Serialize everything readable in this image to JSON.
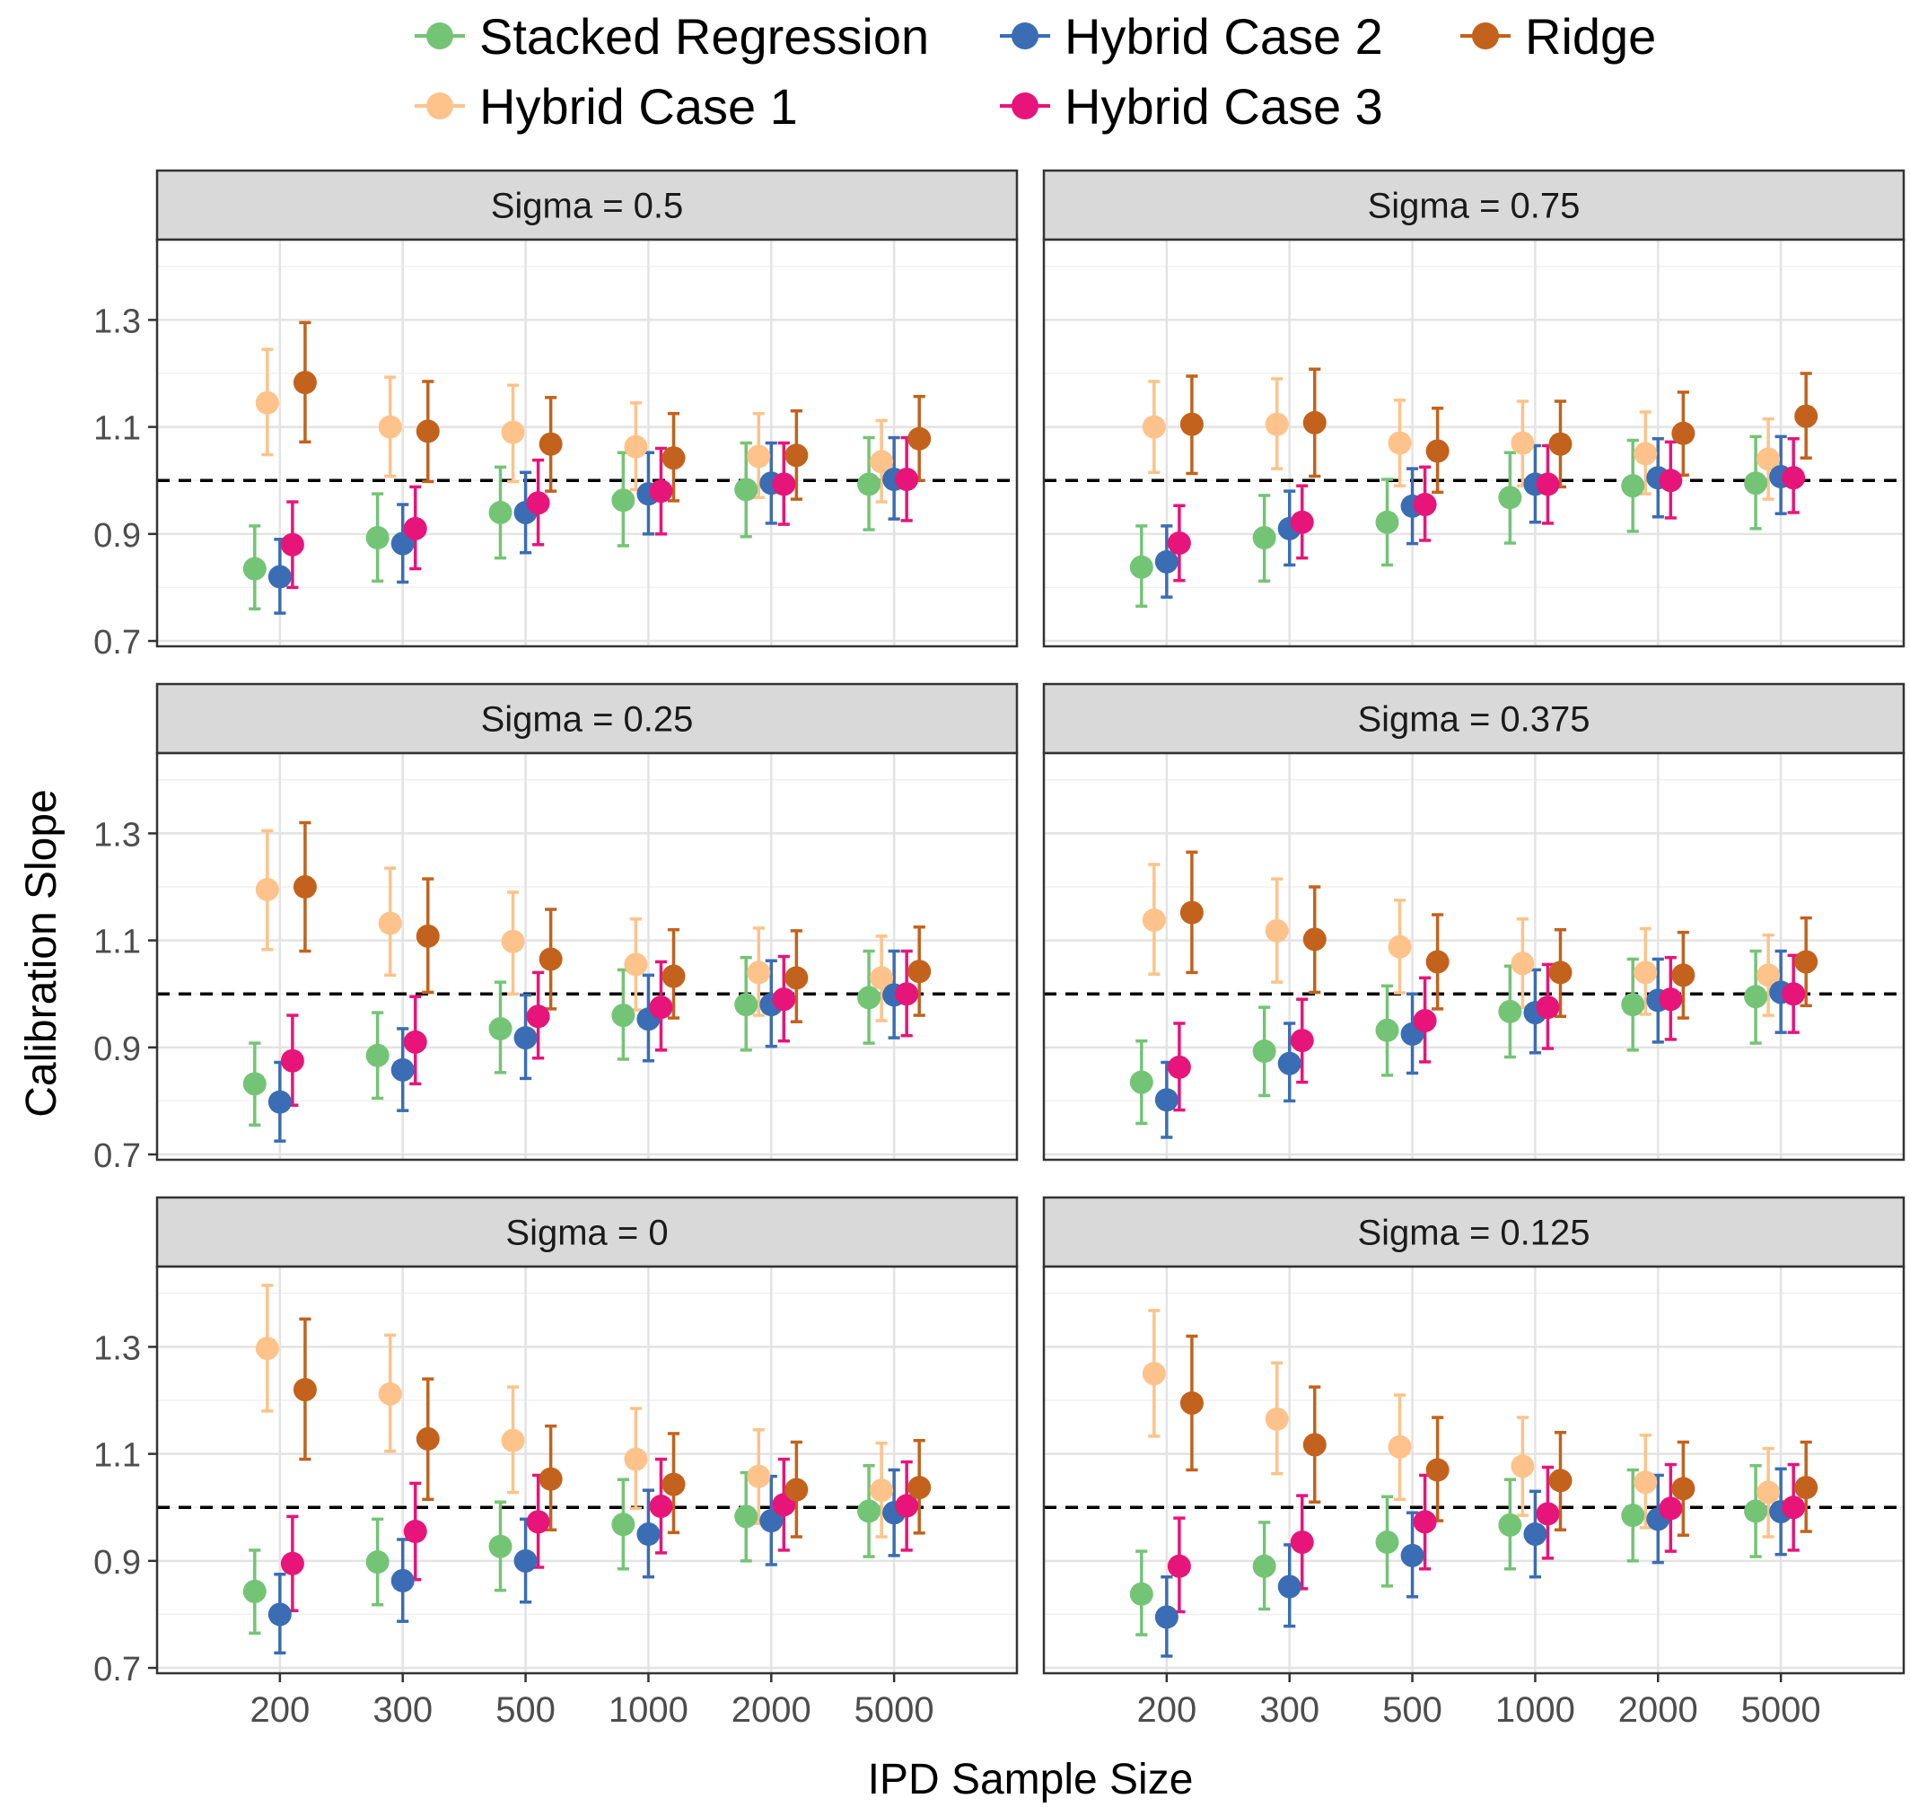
{
  "legend": {
    "items": [
      {
        "name": "Stacked Regression",
        "color": "#74c476"
      },
      {
        "name": "Hybrid Case 2",
        "color": "#3a6db3"
      },
      {
        "name": "Ridge",
        "color": "#c2621c"
      },
      {
        "name": "Hybrid Case 1",
        "color": "#fdc38a"
      },
      {
        "name": "Hybrid Case 3",
        "color": "#e7157a"
      }
    ]
  },
  "chart_data": {
    "type": "scatter",
    "subtype": "point-range-faceted",
    "xlabel": "IPD Sample Size",
    "ylabel": "Calibration Slope",
    "categories": [
      "200",
      "300",
      "500",
      "1000",
      "2000",
      "5000"
    ],
    "ylim": [
      0.69,
      1.45
    ],
    "yticks": [
      "0.7",
      "0.9",
      "1.1",
      "1.3"
    ],
    "reference_line": 1.0,
    "series_order": [
      "Stacked Regression",
      "Hybrid Case 2",
      "Hybrid Case 3",
      "Hybrid Case 1",
      "Ridge"
    ],
    "colors": {
      "Stacked Regression": "#74c476",
      "Hybrid Case 2": "#3a6db3",
      "Hybrid Case 3": "#e7157a",
      "Hybrid Case 1": "#fdc38a",
      "Ridge": "#c2621c"
    },
    "facets": [
      {
        "title": "Sigma = 0.5",
        "series": {
          "Stacked Regression": [
            [
              0.835,
              0.76,
              0.915
            ],
            [
              0.893,
              0.812,
              0.975
            ],
            [
              0.94,
              0.855,
              1.025
            ],
            [
              0.963,
              0.878,
              1.052
            ],
            [
              0.983,
              0.895,
              1.07
            ],
            [
              0.993,
              0.908,
              1.08
            ]
          ],
          "Hybrid Case 2": [
            [
              0.82,
              0.752,
              0.89
            ],
            [
              0.882,
              0.81,
              0.955
            ],
            [
              0.94,
              0.865,
              1.015
            ],
            [
              0.975,
              0.9,
              1.052
            ],
            [
              0.995,
              0.92,
              1.07
            ],
            [
              1.002,
              0.928,
              1.08
            ]
          ],
          "Hybrid Case 3": [
            [
              0.88,
              0.8,
              0.96
            ],
            [
              0.91,
              0.835,
              0.988
            ],
            [
              0.958,
              0.88,
              1.038
            ],
            [
              0.98,
              0.9,
              1.06
            ],
            [
              0.993,
              0.918,
              1.07
            ],
            [
              1.002,
              0.925,
              1.08
            ]
          ],
          "Hybrid Case 1": [
            [
              1.145,
              1.048,
              1.245
            ],
            [
              1.1,
              1.008,
              1.193
            ],
            [
              1.09,
              0.998,
              1.178
            ],
            [
              1.063,
              0.983,
              1.145
            ],
            [
              1.045,
              0.968,
              1.125
            ],
            [
              1.035,
              0.96,
              1.112
            ]
          ],
          "Ridge": [
            [
              1.183,
              1.072,
              1.295
            ],
            [
              1.092,
              0.998,
              1.185
            ],
            [
              1.068,
              0.98,
              1.155
            ],
            [
              1.042,
              0.962,
              1.125
            ],
            [
              1.047,
              0.965,
              1.13
            ],
            [
              1.078,
              1.0,
              1.157
            ]
          ]
        }
      },
      {
        "title": "Sigma = 0.75",
        "series": {
          "Stacked Regression": [
            [
              0.838,
              0.765,
              0.915
            ],
            [
              0.893,
              0.812,
              0.972
            ],
            [
              0.922,
              0.842,
              1.002
            ],
            [
              0.968,
              0.883,
              1.052
            ],
            [
              0.99,
              0.905,
              1.075
            ],
            [
              0.995,
              0.91,
              1.082
            ]
          ],
          "Hybrid Case 2": [
            [
              0.848,
              0.782,
              0.915
            ],
            [
              0.91,
              0.842,
              0.98
            ],
            [
              0.952,
              0.882,
              1.022
            ],
            [
              0.993,
              0.922,
              1.065
            ],
            [
              1.005,
              0.932,
              1.078
            ],
            [
              1.007,
              0.938,
              1.082
            ]
          ],
          "Hybrid Case 3": [
            [
              0.883,
              0.813,
              0.953
            ],
            [
              0.922,
              0.855,
              0.99
            ],
            [
              0.955,
              0.888,
              1.025
            ],
            [
              0.993,
              0.92,
              1.065
            ],
            [
              1.0,
              0.93,
              1.072
            ],
            [
              1.005,
              0.94,
              1.078
            ]
          ],
          "Hybrid Case 1": [
            [
              1.1,
              1.015,
              1.185
            ],
            [
              1.105,
              1.022,
              1.19
            ],
            [
              1.07,
              0.99,
              1.15
            ],
            [
              1.07,
              0.99,
              1.148
            ],
            [
              1.05,
              0.975,
              1.128
            ],
            [
              1.04,
              0.965,
              1.115
            ]
          ],
          "Ridge": [
            [
              1.105,
              1.013,
              1.195
            ],
            [
              1.108,
              1.008,
              1.208
            ],
            [
              1.055,
              0.978,
              1.135
            ],
            [
              1.068,
              0.988,
              1.148
            ],
            [
              1.088,
              1.01,
              1.165
            ],
            [
              1.12,
              1.042,
              1.2
            ]
          ]
        }
      },
      {
        "title": "Sigma = 0.25",
        "series": {
          "Stacked Regression": [
            [
              0.832,
              0.755,
              0.908
            ],
            [
              0.885,
              0.805,
              0.965
            ],
            [
              0.935,
              0.853,
              1.022
            ],
            [
              0.96,
              0.878,
              1.045
            ],
            [
              0.98,
              0.895,
              1.068
            ],
            [
              0.993,
              0.908,
              1.08
            ]
          ],
          "Hybrid Case 2": [
            [
              0.798,
              0.725,
              0.872
            ],
            [
              0.858,
              0.782,
              0.935
            ],
            [
              0.918,
              0.842,
              0.998
            ],
            [
              0.953,
              0.875,
              1.035
            ],
            [
              0.98,
              0.902,
              1.062
            ],
            [
              0.998,
              0.918,
              1.08
            ]
          ],
          "Hybrid Case 3": [
            [
              0.875,
              0.792,
              0.96
            ],
            [
              0.91,
              0.832,
              0.995
            ],
            [
              0.958,
              0.88,
              1.04
            ],
            [
              0.975,
              0.895,
              1.06
            ],
            [
              0.99,
              0.912,
              1.07
            ],
            [
              1.0,
              0.922,
              1.08
            ]
          ],
          "Hybrid Case 1": [
            [
              1.195,
              1.083,
              1.305
            ],
            [
              1.132,
              1.035,
              1.235
            ],
            [
              1.098,
              1.0,
              1.19
            ],
            [
              1.055,
              0.97,
              1.14
            ],
            [
              1.04,
              0.96,
              1.123
            ],
            [
              1.03,
              0.95,
              1.108
            ]
          ],
          "Ridge": [
            [
              1.2,
              1.08,
              1.32
            ],
            [
              1.108,
              1.003,
              1.215
            ],
            [
              1.065,
              0.972,
              1.158
            ],
            [
              1.033,
              0.955,
              1.12
            ],
            [
              1.03,
              0.948,
              1.118
            ],
            [
              1.042,
              0.96,
              1.125
            ]
          ]
        }
      },
      {
        "title": "Sigma = 0.375",
        "series": {
          "Stacked Regression": [
            [
              0.835,
              0.758,
              0.912
            ],
            [
              0.893,
              0.81,
              0.975
            ],
            [
              0.932,
              0.848,
              1.015
            ],
            [
              0.967,
              0.882,
              1.052
            ],
            [
              0.98,
              0.895,
              1.065
            ],
            [
              0.995,
              0.908,
              1.08
            ]
          ],
          "Hybrid Case 2": [
            [
              0.802,
              0.732,
              0.872
            ],
            [
              0.87,
              0.8,
              0.945
            ],
            [
              0.925,
              0.852,
              1.0
            ],
            [
              0.965,
              0.89,
              1.045
            ],
            [
              0.988,
              0.91,
              1.065
            ],
            [
              1.003,
              0.928,
              1.08
            ]
          ],
          "Hybrid Case 3": [
            [
              0.863,
              0.783,
              0.945
            ],
            [
              0.913,
              0.835,
              0.99
            ],
            [
              0.95,
              0.873,
              1.03
            ],
            [
              0.975,
              0.898,
              1.055
            ],
            [
              0.99,
              0.915,
              1.068
            ],
            [
              1.0,
              0.928,
              1.072
            ]
          ],
          "Hybrid Case 1": [
            [
              1.138,
              1.037,
              1.242
            ],
            [
              1.118,
              1.022,
              1.215
            ],
            [
              1.088,
              1.002,
              1.175
            ],
            [
              1.057,
              0.975,
              1.14
            ],
            [
              1.04,
              0.962,
              1.122
            ],
            [
              1.035,
              0.96,
              1.11
            ]
          ],
          "Ridge": [
            [
              1.152,
              1.04,
              1.265
            ],
            [
              1.102,
              1.003,
              1.2
            ],
            [
              1.06,
              0.972,
              1.148
            ],
            [
              1.04,
              0.958,
              1.12
            ],
            [
              1.035,
              0.955,
              1.115
            ],
            [
              1.06,
              0.978,
              1.142
            ]
          ]
        }
      },
      {
        "title": "Sigma = 0",
        "series": {
          "Stacked Regression": [
            [
              0.843,
              0.765,
              0.92
            ],
            [
              0.898,
              0.818,
              0.978
            ],
            [
              0.927,
              0.845,
              1.01
            ],
            [
              0.968,
              0.885,
              1.052
            ],
            [
              0.983,
              0.9,
              1.065
            ],
            [
              0.993,
              0.908,
              1.078
            ]
          ],
          "Hybrid Case 2": [
            [
              0.8,
              0.728,
              0.875
            ],
            [
              0.863,
              0.787,
              0.94
            ],
            [
              0.9,
              0.823,
              0.978
            ],
            [
              0.95,
              0.87,
              1.032
            ],
            [
              0.975,
              0.893,
              1.058
            ],
            [
              0.99,
              0.91,
              1.07
            ]
          ],
          "Hybrid Case 3": [
            [
              0.895,
              0.807,
              0.983
            ],
            [
              0.955,
              0.865,
              1.045
            ],
            [
              0.973,
              0.888,
              1.06
            ],
            [
              1.002,
              0.915,
              1.09
            ],
            [
              1.005,
              0.92,
              1.09
            ],
            [
              1.003,
              0.92,
              1.085
            ]
          ],
          "Hybrid Case 1": [
            [
              1.297,
              1.18,
              1.415
            ],
            [
              1.212,
              1.105,
              1.322
            ],
            [
              1.125,
              1.028,
              1.225
            ],
            [
              1.09,
              0.998,
              1.185
            ],
            [
              1.058,
              0.97,
              1.145
            ],
            [
              1.032,
              0.945,
              1.12
            ]
          ],
          "Ridge": [
            [
              1.22,
              1.09,
              1.352
            ],
            [
              1.128,
              1.015,
              1.24
            ],
            [
              1.053,
              0.958,
              1.152
            ],
            [
              1.043,
              0.953,
              1.138
            ],
            [
              1.033,
              0.945,
              1.122
            ],
            [
              1.037,
              0.952,
              1.125
            ]
          ]
        }
      },
      {
        "title": "Sigma = 0.125",
        "series": {
          "Stacked Regression": [
            [
              0.838,
              0.762,
              0.918
            ],
            [
              0.89,
              0.81,
              0.972
            ],
            [
              0.935,
              0.853,
              1.02
            ],
            [
              0.967,
              0.885,
              1.052
            ],
            [
              0.985,
              0.9,
              1.07
            ],
            [
              0.993,
              0.908,
              1.078
            ]
          ],
          "Hybrid Case 2": [
            [
              0.795,
              0.722,
              0.87
            ],
            [
              0.852,
              0.778,
              0.93
            ],
            [
              0.91,
              0.833,
              0.99
            ],
            [
              0.95,
              0.87,
              1.03
            ],
            [
              0.978,
              0.897,
              1.06
            ],
            [
              0.992,
              0.912,
              1.072
            ]
          ],
          "Hybrid Case 3": [
            [
              0.89,
              0.805,
              0.98
            ],
            [
              0.935,
              0.848,
              1.022
            ],
            [
              0.973,
              0.885,
              1.06
            ],
            [
              0.988,
              0.905,
              1.075
            ],
            [
              0.998,
              0.918,
              1.08
            ],
            [
              1.0,
              0.92,
              1.08
            ]
          ],
          "Hybrid Case 1": [
            [
              1.25,
              1.133,
              1.368
            ],
            [
              1.165,
              1.063,
              1.27
            ],
            [
              1.113,
              1.015,
              1.21
            ],
            [
              1.077,
              0.985,
              1.168
            ],
            [
              1.047,
              0.962,
              1.135
            ],
            [
              1.028,
              0.945,
              1.11
            ]
          ],
          "Ridge": [
            [
              1.195,
              1.07,
              1.32
            ],
            [
              1.117,
              1.01,
              1.225
            ],
            [
              1.07,
              0.975,
              1.168
            ],
            [
              1.05,
              0.958,
              1.14
            ],
            [
              1.035,
              0.948,
              1.122
            ],
            [
              1.037,
              0.955,
              1.122
            ]
          ]
        }
      }
    ]
  }
}
